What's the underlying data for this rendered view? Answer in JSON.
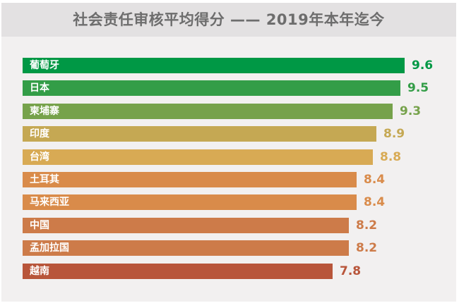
{
  "title": "社会责任审核平均得分 —— 2019年本年迄今",
  "chart_data": {
    "type": "bar",
    "orientation": "horizontal",
    "title": "社会责任审核平均得分 —— 2019年本年迄今",
    "xlabel": "",
    "ylabel": "",
    "grid": false,
    "legend": null,
    "categories": [
      "葡萄牙",
      "日本",
      "柬埔寨",
      "印度",
      "台湾",
      "土耳其",
      "马来西亚",
      "中国",
      "孟加拉国",
      "越南"
    ],
    "values": [
      9.6,
      9.5,
      9.3,
      8.9,
      8.8,
      8.4,
      8.4,
      8.2,
      8.2,
      7.8
    ],
    "value_labels": [
      "9.6",
      "9.5",
      "9.3",
      "8.9",
      "8.8",
      "8.4",
      "8.4",
      "8.2",
      "8.2",
      "7.8"
    ],
    "colors": [
      "#009845",
      "#339d47",
      "#76a24b",
      "#c5a853",
      "#d8aa54",
      "#d98b4a",
      "#d98b4a",
      "#cd7b49",
      "#cd7b49",
      "#b8553a"
    ]
  }
}
